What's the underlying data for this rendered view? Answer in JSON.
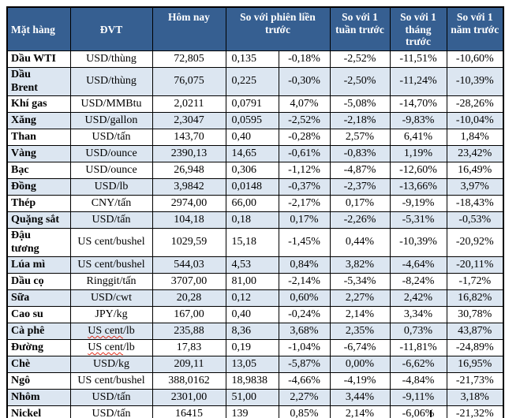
{
  "colors": {
    "header_bg": "#365F91",
    "header_text": "#FFFFFF",
    "band_row_bg": "#DCE6F1",
    "plain_row_bg": "#FFFFFF",
    "border": "#000000",
    "spellcheck_underline": "#E0301E"
  },
  "table": {
    "headers": {
      "commodity": "Mặt hàng",
      "unit": "ĐVT",
      "today": "Hôm nay",
      "vs_prev_session": "So với phiên liền trước",
      "vs_week": "So với 1 tuần trước",
      "vs_month": "So với 1 tháng trước",
      "vs_year": "So với 1 năm trước"
    },
    "rows": [
      {
        "name": "Dầu WTI",
        "unit": "USD/thùng",
        "today": "72,805",
        "prev_change": "0,135",
        "prev_pct": "-0,18%",
        "week_pct": "-2,52%",
        "month_pct": "-11,51%",
        "year_pct": "-10,60%"
      },
      {
        "name": "Dầu\nBrent",
        "unit": "USD/thùng",
        "today": "76,075",
        "prev_change": "0,225",
        "prev_pct": "-0,30%",
        "week_pct": "-2,50%",
        "month_pct": "-11,24%",
        "year_pct": "-10,39%"
      },
      {
        "name": "Khí gas",
        "unit": "USD/MMBtu",
        "today": "2,0211",
        "prev_change": "0,0791",
        "prev_pct": "4,07%",
        "week_pct": "-5,08%",
        "month_pct": "-14,70%",
        "year_pct": "-28,26%"
      },
      {
        "name": "Xăng",
        "unit": "USD/gallon",
        "today": "2,3047",
        "prev_change": "0,0595",
        "prev_pct": "-2,52%",
        "week_pct": "-2,18%",
        "month_pct": "-9,83%",
        "year_pct": "-10,04%"
      },
      {
        "name": "Than",
        "unit": "USD/tấn",
        "today": "143,70",
        "prev_change": "0,40",
        "prev_pct": "-0,28%",
        "week_pct": "2,57%",
        "month_pct": "6,41%",
        "year_pct": "1,84%"
      },
      {
        "name": "Vàng",
        "unit": "USD/ounce",
        "today": "2390,13",
        "prev_change": "14,65",
        "prev_pct": "-0,61%",
        "week_pct": "-0,83%",
        "month_pct": "1,19%",
        "year_pct": "23,42%"
      },
      {
        "name": "Bạc",
        "unit": "USD/ounce",
        "today": "26,948",
        "prev_change": "0,306",
        "prev_pct": "-1,12%",
        "week_pct": "-4,87%",
        "month_pct": "-12,60%",
        "year_pct": "16,49%"
      },
      {
        "name": "Đồng",
        "unit": "USD/lb",
        "today": "3,9842",
        "prev_change": "0,0148",
        "prev_pct": "-0,37%",
        "week_pct": "-2,37%",
        "month_pct": "-13,66%",
        "year_pct": "3,97%"
      },
      {
        "name": "Thép",
        "unit": "CNY/tấn",
        "today": "2974,00",
        "prev_change": "66,00",
        "prev_pct": "-2,17%",
        "week_pct": "0,17%",
        "month_pct": "-9,19%",
        "year_pct": "-18,43%"
      },
      {
        "name": "Quặng sắt",
        "unit": "USD/tấn",
        "today": "104,18",
        "prev_change": "0,18",
        "prev_pct": "0,17%",
        "week_pct": "-2,26%",
        "month_pct": "-5,31%",
        "year_pct": "-0,53%"
      },
      {
        "name": "Đậu\ntương",
        "unit": "US cent/bushel",
        "today": "1029,59",
        "prev_change": "15,18",
        "prev_pct": "-1,45%",
        "week_pct": "0,44%",
        "month_pct": "-10,39%",
        "year_pct": "-20,92%"
      },
      {
        "name": "Lúa mì",
        "unit": "US cent/bushel",
        "today": "544,03",
        "prev_change": "4,53",
        "prev_pct": "0,84%",
        "week_pct": "3,82%",
        "month_pct": "-4,64%",
        "year_pct": "-20,11%"
      },
      {
        "name": "Dầu cọ",
        "unit": "Ringgit/tấn",
        "today": "3707,00",
        "prev_change": "81,00",
        "prev_pct": "-2,14%",
        "week_pct": "-5,34%",
        "month_pct": "-8,24%",
        "year_pct": "-1,72%"
      },
      {
        "name": "Sữa",
        "unit": "USD/cwt",
        "today": "20,28",
        "prev_change": "0,12",
        "prev_pct": "0,60%",
        "week_pct": "2,27%",
        "month_pct": "2,42%",
        "year_pct": "16,82%"
      },
      {
        "name": "Cao su",
        "unit": "JPY/kg",
        "today": "167,00",
        "prev_change": "0,40",
        "prev_pct": "-0,24%",
        "week_pct": "2,14%",
        "month_pct": "3,34%",
        "year_pct": "30,78%"
      },
      {
        "name": "Cà phê",
        "unit": "US cent/lb",
        "today": "235,88",
        "prev_change": "8,36",
        "prev_pct": "3,68%",
        "week_pct": "2,35%",
        "month_pct": "0,73%",
        "year_pct": "43,87%",
        "unit_misspelled": true
      },
      {
        "name": "Đường",
        "unit": "US cent/lb",
        "today": "17,83",
        "prev_change": "0,19",
        "prev_pct": "-1,04%",
        "week_pct": "-6,74%",
        "month_pct": "-11,81%",
        "year_pct": "-24,89%",
        "unit_misspelled": true
      },
      {
        "name": "Chè",
        "unit": "USD/kg",
        "today": "209,11",
        "prev_change": "13,05",
        "prev_pct": "-5,87%",
        "week_pct": "0,00%",
        "month_pct": "-6,62%",
        "year_pct": "16,95%"
      },
      {
        "name": "Ngô",
        "unit": "US cent/bushel",
        "today": "388,0162",
        "prev_change": "18,9838",
        "prev_pct": "-4,66%",
        "week_pct": "-4,19%",
        "month_pct": "-4,84%",
        "year_pct": "-21,73%"
      },
      {
        "name": "Nhôm",
        "unit": "USD/tấn",
        "today": "2301,00",
        "prev_change": "51,00",
        "prev_pct": "2,27%",
        "week_pct": "3,44%",
        "month_pct": "-9,11%",
        "year_pct": "3,18%"
      },
      {
        "name": "Nickel",
        "unit": "USD/tấn",
        "today": "16415",
        "prev_change": "139",
        "prev_pct": "0,85%",
        "week_pct": "2,14%",
        "month_pct": "-6,06%",
        "year_pct": "-21,32%"
      }
    ]
  }
}
